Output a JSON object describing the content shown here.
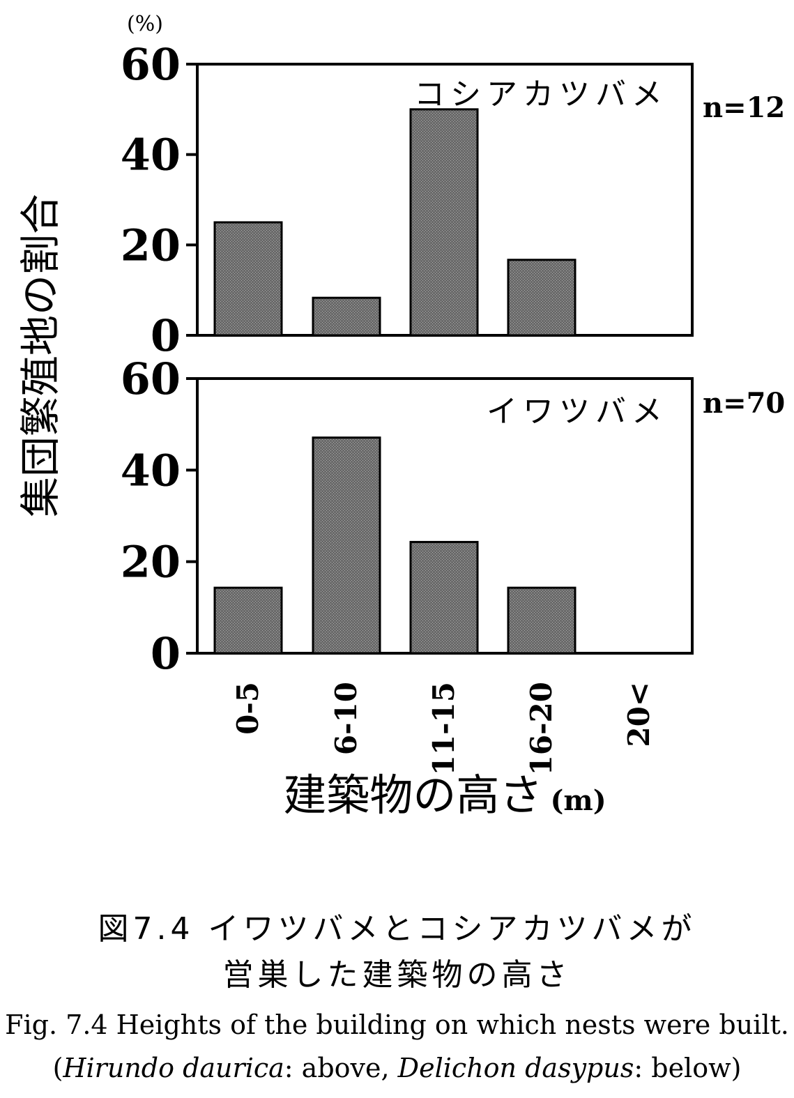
{
  "chart_data": [
    {
      "type": "bar",
      "species_label": "コシアカツバメ",
      "n_label": "n=12",
      "categories": [
        "0-5",
        "6-10",
        "11-15",
        "16-20",
        "20<"
      ],
      "values": [
        25,
        8.3,
        50,
        16.7,
        0
      ],
      "ylim": [
        0,
        60
      ],
      "yticks": [
        "0",
        "20",
        "40",
        "60"
      ],
      "grid": false,
      "bar_color": "#555555"
    },
    {
      "type": "bar",
      "species_label": "イワツバメ",
      "n_label": "n=70",
      "categories": [
        "0-5",
        "6-10",
        "11-15",
        "16-20",
        "20<"
      ],
      "values": [
        14.3,
        47.1,
        24.3,
        14.3,
        0
      ],
      "ylim": [
        0,
        60
      ],
      "yticks": [
        "0",
        "20",
        "40",
        "60"
      ],
      "grid": false,
      "bar_color": "#555555"
    }
  ],
  "axes": {
    "y_unit": "(%)",
    "ylabel": "集団繁殖地の割合",
    "xlabel": "建築物の高さ",
    "x_unit": "(m)"
  },
  "caption": {
    "jp_line1": "図7.4 イワツバメとコシアカツバメが",
    "jp_line2": "営巣した建築物の高さ",
    "en_line1": "Fig. 7.4   Heights of the building on which nests were built.",
    "en_line2_open": "(",
    "en_line2_sp1": "Hirundo  daurica",
    "en_line2_mid": ": above, ",
    "en_line2_sp2": "Delichon  dasypus",
    "en_line2_close": ": below)"
  }
}
